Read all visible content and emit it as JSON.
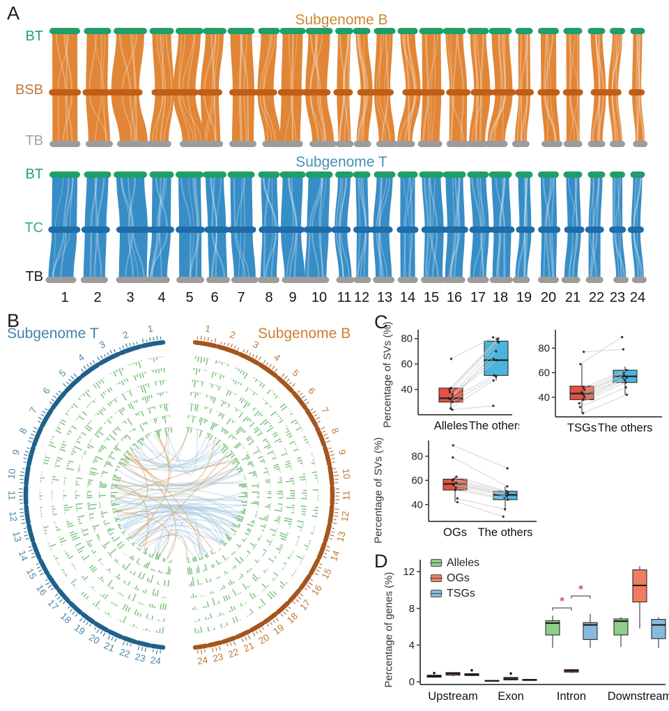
{
  "panel_a": {
    "label": "A",
    "top_title": "Subgenome B",
    "bottom_title": "Subgenome T",
    "top_title_color": "#CE8536",
    "bottom_title_color": "#4B8FB4",
    "top_rows": [
      {
        "text": "BT",
        "color": "#1FA07C"
      },
      {
        "text": "BSB",
        "color": "#C2763B"
      },
      {
        "text": "TB",
        "color": "#A2A2A2"
      }
    ],
    "bottom_rows": [
      {
        "text": "BT",
        "color": "#1FA07C"
      },
      {
        "text": "TC",
        "color": "#3AA39B"
      },
      {
        "text": "TB",
        "color": "#171717"
      }
    ],
    "chromosomes": [
      "1",
      "2",
      "3",
      "4",
      "5",
      "6",
      "7",
      "8",
      "9",
      "10",
      "11",
      "12",
      "13",
      "14",
      "15",
      "16",
      "17",
      "18",
      "19",
      "20",
      "21",
      "22",
      "23",
      "24"
    ],
    "colors": {
      "top_ribbon": "#E0812E",
      "top_cap": "#1F9E69",
      "top_mid": "#C05E15",
      "bottom_ribbon": "#2F88C4",
      "bottom_mid": "#1E6CA8",
      "end_cap": "#9C9C9C"
    }
  },
  "panel_b": {
    "label": "B",
    "left_title": "Subgenome T",
    "right_title": "Subgenome B",
    "left_title_color": "#3E85A8",
    "right_title_color": "#C9802F",
    "left_chromosomes": [
      "1",
      "2",
      "3",
      "4",
      "5",
      "6",
      "7",
      "8",
      "9",
      "10",
      "11",
      "12",
      "13",
      "14",
      "15",
      "16",
      "17",
      "18",
      "19",
      "20",
      "21",
      "22",
      "23",
      "24"
    ],
    "right_chromosomes": [
      "1",
      "2",
      "3",
      "4",
      "5",
      "6",
      "7",
      "8",
      "9",
      "10",
      "11",
      "12",
      "13",
      "14",
      "15",
      "16",
      "17",
      "18",
      "19",
      "20",
      "21",
      "22",
      "23",
      "24"
    ],
    "track_count": 7,
    "colors": {
      "left_ideogram": "#20618C",
      "right_ideogram": "#A4561E",
      "left_number": "#4C86A6",
      "right_number": "#C0762F",
      "track": "#6FC26F",
      "track_baseline": "#C9C9C9",
      "link_blue": "#A9CBE1",
      "link_orange": "#D59A55"
    }
  },
  "panel_c": {
    "label": "C",
    "ylabel": "Percentage of SVs (%)"
  },
  "panel_d": {
    "label": "D",
    "ylabel": "Percentage of genes (%)"
  },
  "chart_data": [
    {
      "id": "c_alleles",
      "type": "boxplot",
      "subtype": "paired",
      "ylabel": "Percentage of SVs (%)",
      "yticks": [
        40,
        60,
        80
      ],
      "ylim": [
        20,
        87
      ],
      "categories": [
        "Alleles",
        "The others"
      ],
      "box_colors": [
        "#E3523F",
        "#4CB4DC"
      ],
      "boxes": [
        {
          "lo": 24,
          "q1": 30,
          "med": 33,
          "q3": 41,
          "hi": 42
        },
        {
          "lo": 47,
          "q1": 51,
          "med": 63,
          "q3": 78,
          "hi": 81
        }
      ],
      "pairs": [
        [
          24,
          27
        ],
        [
          25,
          47
        ],
        [
          30,
          50
        ],
        [
          32,
          51
        ],
        [
          33,
          63
        ],
        [
          33,
          64
        ],
        [
          34,
          70
        ],
        [
          36,
          77
        ],
        [
          38,
          78
        ],
        [
          40,
          79
        ],
        [
          41,
          80
        ],
        [
          64,
          81
        ]
      ]
    },
    {
      "id": "c_tsgs",
      "type": "boxplot",
      "subtype": "paired",
      "ylabel": "Percentage of SVs (%)",
      "yticks": [
        40,
        60,
        80
      ],
      "ylim": [
        24,
        95
      ],
      "categories": [
        "TSGs",
        "The others"
      ],
      "box_colors": [
        "#E3523F",
        "#4CB4DC"
      ],
      "boxes": [
        {
          "lo": 27,
          "q1": 38,
          "med": 43,
          "q3": 49,
          "hi": 67
        },
        {
          "lo": 42,
          "q1": 52,
          "med": 57,
          "q3": 62,
          "hi": 65
        }
      ],
      "pairs": [
        [
          27,
          42
        ],
        [
          32,
          48
        ],
        [
          35,
          52
        ],
        [
          38,
          54
        ],
        [
          40,
          55
        ],
        [
          42,
          56
        ],
        [
          43,
          57
        ],
        [
          44,
          58
        ],
        [
          46,
          60
        ],
        [
          48,
          62
        ],
        [
          67,
          89
        ],
        [
          77,
          79
        ]
      ]
    },
    {
      "id": "c_ogs",
      "type": "boxplot",
      "subtype": "paired",
      "ylabel": "Percentage of SVs (%)",
      "yticks": [
        40,
        60,
        80
      ],
      "ylim": [
        26,
        93
      ],
      "categories": [
        "OGs",
        "The others"
      ],
      "box_colors": [
        "#E3523F",
        "#4CB4DC"
      ],
      "boxes": [
        {
          "lo": 42,
          "q1": 52,
          "med": 57,
          "q3": 61,
          "hi": 63
        },
        {
          "lo": 36,
          "q1": 44,
          "med": 48,
          "q3": 51,
          "hi": 55
        }
      ],
      "pairs": [
        [
          89,
          70
        ],
        [
          79,
          55
        ],
        [
          63,
          51
        ],
        [
          61,
          50
        ],
        [
          60,
          49
        ],
        [
          58,
          48
        ],
        [
          57,
          48
        ],
        [
          56,
          47
        ],
        [
          54,
          45
        ],
        [
          52,
          44
        ],
        [
          45,
          36
        ],
        [
          42,
          30
        ]
      ]
    },
    {
      "id": "d_genes",
      "type": "boxplot",
      "subtype": "grouped",
      "ylabel": "Percentage of genes (%)",
      "yticks": [
        0,
        4,
        8,
        12
      ],
      "ylim": [
        -0.3,
        13.3
      ],
      "categories": [
        "Upstream",
        "Exon",
        "Intron",
        "Downstream"
      ],
      "series": [
        {
          "name": "Alleles",
          "color": "#8FCE8B"
        },
        {
          "name": "OGs",
          "color": "#F07E5E"
        },
        {
          "name": "TSGs",
          "color": "#86BBDD"
        }
      ],
      "boxes": [
        [
          {
            "lo": 0.45,
            "q1": 0.5,
            "med": 0.6,
            "q3": 0.72,
            "hi": 0.78,
            "outliers": [
              0.95
            ]
          },
          {
            "lo": 0.6,
            "q1": 0.72,
            "med": 0.88,
            "q3": 1.0,
            "hi": 1.05,
            "outliers": []
          },
          {
            "lo": 0.6,
            "q1": 0.68,
            "med": 0.78,
            "q3": 0.88,
            "hi": 0.92,
            "outliers": [
              1.25
            ]
          }
        ],
        [
          {
            "lo": 0.04,
            "q1": 0.06,
            "med": 0.1,
            "q3": 0.14,
            "hi": 0.17,
            "outliers": []
          },
          {
            "lo": 0.14,
            "q1": 0.2,
            "med": 0.33,
            "q3": 0.48,
            "hi": 0.55,
            "outliers": [
              0.9
            ]
          },
          {
            "lo": 0.1,
            "q1": 0.14,
            "med": 0.2,
            "q3": 0.26,
            "hi": 0.3,
            "outliers": []
          }
        ],
        [
          {
            "lo": 3.7,
            "q1": 5.1,
            "med": 6.4,
            "q3": 6.65,
            "hi": 7.2,
            "outliers": []
          },
          {
            "lo": 0.95,
            "q1": 1.05,
            "med": 1.2,
            "q3": 1.32,
            "hi": 1.4,
            "outliers": []
          },
          {
            "lo": 3.7,
            "q1": 4.6,
            "med": 6.2,
            "q3": 6.45,
            "hi": 7.4,
            "outliers": []
          }
        ],
        [
          {
            "lo": 3.8,
            "q1": 5.1,
            "med": 6.6,
            "q3": 6.85,
            "hi": 7.05,
            "outliers": []
          },
          {
            "lo": 5.8,
            "q1": 8.7,
            "med": 10.5,
            "q3": 12.2,
            "hi": 12.6,
            "outliers": []
          },
          {
            "lo": 3.7,
            "q1": 4.7,
            "med": 6.2,
            "q3": 6.8,
            "hi": 7.05,
            "outliers": []
          }
        ]
      ],
      "significance": [
        {
          "category": "Intron",
          "between": [
            0,
            1
          ],
          "y": 8.05,
          "label": "*"
        },
        {
          "category": "Intron",
          "between": [
            1,
            2
          ],
          "y": 9.35,
          "label": "*"
        }
      ],
      "significance_color": "#D9534F"
    }
  ]
}
